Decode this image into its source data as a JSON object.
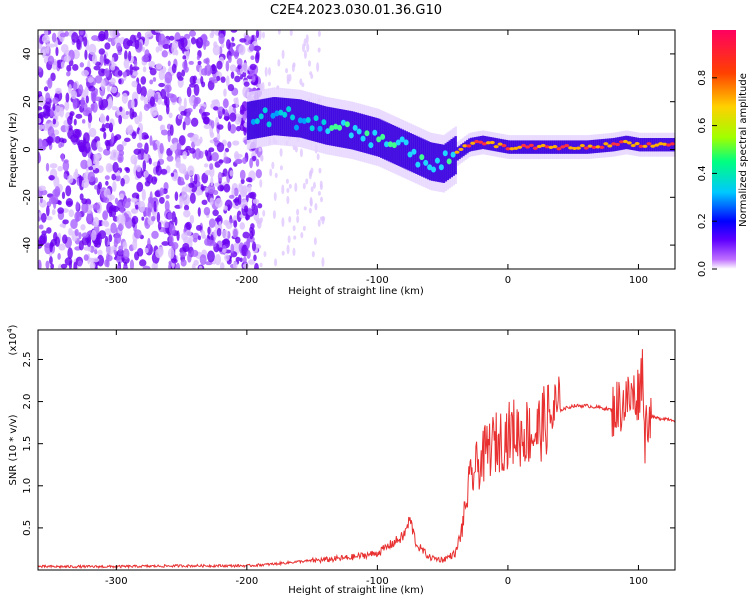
{
  "page_title": "C2E4.2023.030.01.36.G10",
  "chart_data": [
    {
      "type": "heatmap",
      "xlabel": "Height of straight line (km)",
      "ylabel": "Frequency (Hz)",
      "xlim": [
        -360,
        128
      ],
      "ylim": [
        -50,
        50
      ],
      "x_ticks": [
        -300,
        -200,
        -100,
        0,
        100
      ],
      "y_ticks": [
        -40,
        -20,
        0,
        20,
        40
      ],
      "colorbar": {
        "label": "Normalized spectral amplitude",
        "range": [
          0.0,
          1.0
        ],
        "ticks": [
          "0.0",
          "0.2",
          "0.4",
          "0.6",
          "0.8"
        ],
        "colormap": [
          "#ffffff",
          "#8000ff",
          "#0000ff",
          "#00c8ff",
          "#00ff80",
          "#a0ff00",
          "#ffd000",
          "#ff4000",
          "#ff0060"
        ]
      },
      "ridge": {
        "x": [
          -200,
          -180,
          -160,
          -140,
          -120,
          -100,
          -80,
          -60,
          -50,
          -40,
          -30,
          -20,
          -10,
          0,
          20,
          40,
          60,
          80,
          90,
          100,
          110,
          128
        ],
        "y": [
          12,
          14,
          13,
          10,
          8,
          5,
          0,
          -5,
          -6,
          -2,
          2,
          3,
          2,
          1,
          1,
          1,
          1,
          2,
          3,
          2,
          2,
          2
        ]
      }
    },
    {
      "type": "line",
      "xlabel": "Height of straight line (km)",
      "ylabel": "SNR (10 * v/v)",
      "y_multiplier": "(x10",
      "y_multiplier_exp": "4",
      "y_multiplier_close": ")",
      "xlim": [
        -360,
        128
      ],
      "ylim": [
        0,
        2.85
      ],
      "x_ticks": [
        -300,
        -200,
        -100,
        0,
        100
      ],
      "y_ticks": [
        "0.5",
        "1.0",
        "1.5",
        "2.0",
        "2.5"
      ],
      "color": "#e83030",
      "series": [
        {
          "x": [
            -360,
            -300,
            -250,
            -200,
            -180,
            -160,
            -140,
            -120,
            -100,
            -90,
            -80,
            -75,
            -70,
            -60,
            -50,
            -40,
            -35,
            -30,
            -25,
            -20,
            -15,
            -10,
            -5,
            0,
            5,
            10,
            15,
            20,
            25,
            30,
            40,
            50,
            60,
            70,
            80,
            85,
            90,
            95,
            100,
            103,
            105,
            107,
            110,
            115,
            120,
            128
          ],
          "y": [
            0.04,
            0.04,
            0.05,
            0.05,
            0.07,
            0.1,
            0.12,
            0.15,
            0.2,
            0.3,
            0.4,
            0.6,
            0.3,
            0.15,
            0.12,
            0.2,
            0.5,
            1.0,
            1.2,
            1.3,
            1.45,
            1.5,
            1.55,
            1.6,
            1.65,
            1.6,
            1.65,
            1.6,
            1.7,
            1.8,
            1.9,
            1.95,
            1.95,
            1.93,
            1.9,
            1.95,
            2.0,
            2.05,
            2.1,
            2.4,
            1.6,
            1.85,
            1.82,
            1.8,
            1.8,
            1.78
          ]
        }
      ]
    }
  ]
}
